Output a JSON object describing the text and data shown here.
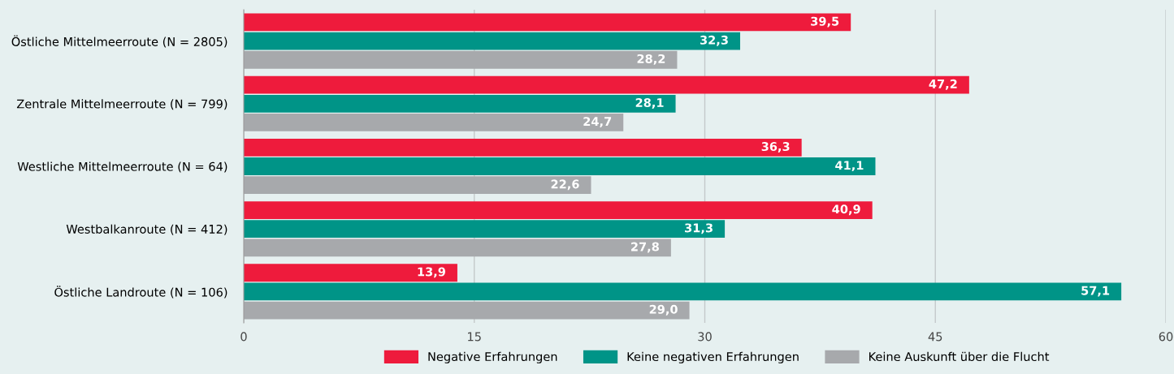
{
  "chart_data": {
    "type": "bar",
    "orientation": "horizontal",
    "categories": [
      "Östliche Mittelmeerroute (N = 2805)",
      "Zentrale Mittelmeerroute (N = 799)",
      "Westliche Mittelmeerroute (N = 64)",
      "Westbalkanroute (N = 412)",
      "Östliche Landroute (N = 106)"
    ],
    "series": [
      {
        "name": "Negative Erfahrungen",
        "color": "#ee1b3c",
        "values": [
          39.5,
          47.2,
          36.3,
          40.9,
          13.9
        ],
        "value_labels": [
          "39,5",
          "47,2",
          "36,3",
          "40,9",
          "13,9"
        ]
      },
      {
        "name": "Keine negativen Erfahrungen",
        "color": "#009487",
        "values": [
          32.3,
          28.1,
          41.1,
          31.3,
          57.1
        ],
        "value_labels": [
          "32,3",
          "28,1",
          "41,1",
          "31,3",
          "57,1"
        ]
      },
      {
        "name": "Keine Auskunft über die Flucht",
        "color": "#a7a9ac",
        "values": [
          28.2,
          24.7,
          22.6,
          27.8,
          29.0
        ],
        "value_labels": [
          "28,2",
          "24,7",
          "22,6",
          "27,8",
          "29,0"
        ]
      }
    ],
    "xlim": [
      0,
      60
    ],
    "xticks": [
      0,
      15,
      30,
      45,
      60
    ],
    "grid": "x",
    "legend": "bottom"
  }
}
